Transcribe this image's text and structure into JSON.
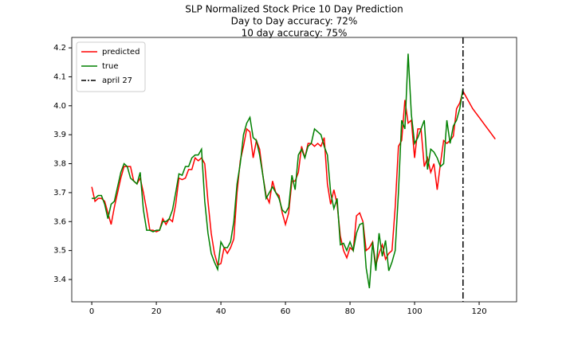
{
  "chart_data": {
    "type": "line",
    "title": "SLP Normalized Stock Price 10 Day Prediction",
    "subtitle": [
      "Day to Day accuracy: 72%",
      "10 day accuracy: 75%"
    ],
    "x": [
      0,
      1,
      2,
      3,
      4,
      5,
      6,
      7,
      8,
      9,
      10,
      11,
      12,
      13,
      14,
      15,
      16,
      17,
      18,
      19,
      20,
      21,
      22,
      23,
      24,
      25,
      26,
      27,
      28,
      29,
      30,
      31,
      32,
      33,
      34,
      35,
      36,
      37,
      38,
      39,
      40,
      41,
      42,
      43,
      44,
      45,
      46,
      47,
      48,
      49,
      50,
      51,
      52,
      53,
      54,
      55,
      56,
      57,
      58,
      59,
      60,
      61,
      62,
      63,
      64,
      65,
      66,
      67,
      68,
      69,
      70,
      71,
      72,
      73,
      74,
      75,
      76,
      77,
      78,
      79,
      80,
      81,
      82,
      83,
      84,
      85,
      86,
      87,
      88,
      89,
      90,
      91,
      92,
      93,
      94,
      95,
      96,
      97,
      98,
      99,
      100,
      101,
      102,
      103,
      104,
      105,
      106,
      107,
      108,
      109,
      110,
      111,
      112,
      113,
      114,
      115,
      116,
      117,
      118,
      119,
      120,
      121,
      122,
      123,
      124,
      125
    ],
    "series": [
      {
        "name": "predicted",
        "color": "#ff0000",
        "values": [
          3.72,
          3.67,
          3.68,
          3.68,
          3.67,
          3.63,
          3.59,
          3.65,
          3.7,
          3.75,
          3.79,
          3.79,
          3.79,
          3.74,
          3.73,
          3.75,
          3.7,
          3.64,
          3.57,
          3.57,
          3.565,
          3.57,
          3.61,
          3.59,
          3.61,
          3.6,
          3.66,
          3.75,
          3.745,
          3.75,
          3.78,
          3.78,
          3.82,
          3.81,
          3.82,
          3.8,
          3.67,
          3.56,
          3.49,
          3.45,
          3.455,
          3.51,
          3.49,
          3.51,
          3.54,
          3.7,
          3.81,
          3.86,
          3.92,
          3.91,
          3.82,
          3.88,
          3.85,
          3.76,
          3.69,
          3.665,
          3.74,
          3.7,
          3.69,
          3.63,
          3.59,
          3.63,
          3.74,
          3.74,
          3.77,
          3.86,
          3.82,
          3.87,
          3.87,
          3.86,
          3.87,
          3.86,
          3.89,
          3.73,
          3.66,
          3.71,
          3.66,
          3.55,
          3.5,
          3.475,
          3.51,
          3.5,
          3.62,
          3.63,
          3.6,
          3.5,
          3.51,
          3.53,
          3.45,
          3.49,
          3.52,
          3.47,
          3.49,
          3.5,
          3.65,
          3.86,
          3.88,
          4.02,
          3.94,
          3.95,
          3.82,
          3.92,
          3.92,
          3.79,
          3.82,
          3.77,
          3.8,
          3.71,
          3.8,
          3.88,
          3.87,
          3.88,
          3.895,
          3.99,
          4.01,
          4.05,
          4.03,
          4.01,
          3.99,
          3.975,
          3.96,
          3.945,
          3.93,
          3.915,
          3.9,
          3.885
        ]
      },
      {
        "name": "true",
        "color": "#008000",
        "values": [
          3.68,
          3.68,
          3.69,
          3.69,
          3.66,
          3.61,
          3.66,
          3.67,
          3.72,
          3.77,
          3.8,
          3.79,
          3.75,
          3.74,
          3.73,
          3.77,
          3.64,
          3.57,
          3.57,
          3.565,
          3.57,
          3.57,
          3.6,
          3.6,
          3.61,
          3.64,
          3.7,
          3.765,
          3.76,
          3.79,
          3.79,
          3.82,
          3.83,
          3.83,
          3.85,
          3.67,
          3.56,
          3.49,
          3.46,
          3.435,
          3.53,
          3.51,
          3.51,
          3.53,
          3.6,
          3.73,
          3.8,
          3.9,
          3.94,
          3.96,
          3.89,
          3.88,
          3.83,
          3.76,
          3.68,
          3.7,
          3.72,
          3.7,
          3.68,
          3.64,
          3.63,
          3.65,
          3.76,
          3.71,
          3.83,
          3.85,
          3.82,
          3.86,
          3.87,
          3.92,
          3.91,
          3.9,
          3.86,
          3.83,
          3.7,
          3.645,
          3.68,
          3.52,
          3.525,
          3.5,
          3.53,
          3.5,
          3.56,
          3.59,
          3.595,
          3.44,
          3.37,
          3.53,
          3.43,
          3.56,
          3.48,
          3.535,
          3.43,
          3.46,
          3.5,
          3.7,
          3.95,
          3.92,
          4.18,
          3.97,
          3.87,
          3.89,
          3.92,
          3.95,
          3.78,
          3.85,
          3.84,
          3.82,
          3.79,
          3.8,
          3.95,
          3.87,
          3.93,
          3.95,
          3.99,
          4.06,
          null,
          null,
          null,
          null,
          null,
          null,
          null,
          null,
          null,
          null
        ]
      }
    ],
    "vlines": [
      {
        "name": "april 27",
        "x": 115,
        "color": "#000000"
      }
    ],
    "xlim": [
      -6.2,
      131.6
    ],
    "xticks": [
      0,
      20,
      40,
      60,
      80,
      100,
      120
    ],
    "ylim": [
      3.323,
      4.236
    ],
    "yticks": [
      3.4,
      3.5,
      3.6,
      3.7,
      3.8,
      3.9,
      {
        "value": 4,
        "label": "4.0"
      },
      4.1,
      4.2
    ],
    "legend": "upper left",
    "grid": false
  }
}
